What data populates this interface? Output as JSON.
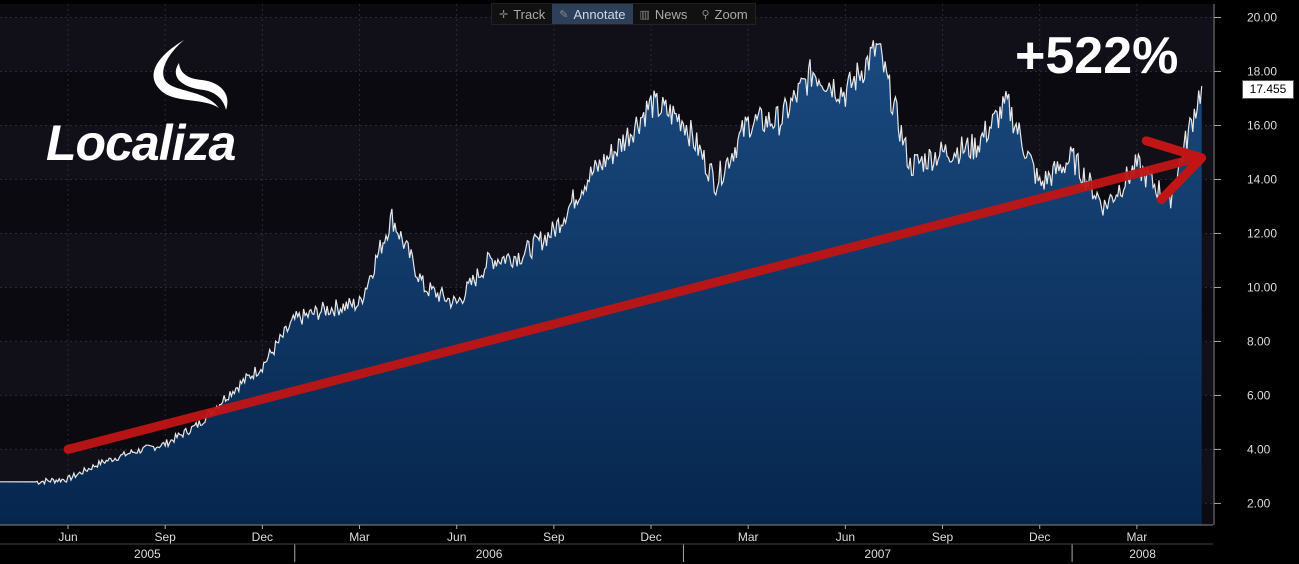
{
  "toolbar": {
    "track_label": "Track",
    "annotate_label": "Annotate",
    "news_label": "News",
    "zoom_label": "Zoom"
  },
  "logo": {
    "text": "Localiza",
    "icon": "swoosh-icon"
  },
  "annotation": {
    "percent_change": "+522%"
  },
  "last_price_tag": "17.455",
  "colors": {
    "background": "#0b0b12",
    "area_fill": "#0b3566",
    "line": "#e8e8e8",
    "arrow": "#c01515"
  },
  "chart_data": {
    "type": "area",
    "x": [
      "2005-05",
      "2005-06",
      "2005-07",
      "2005-08",
      "2005-09",
      "2005-10",
      "2005-11",
      "2005-12",
      "2006-01",
      "2006-02",
      "2006-03",
      "2006-04",
      "2006-05",
      "2006-06",
      "2006-07",
      "2006-08",
      "2006-09",
      "2006-10",
      "2006-11",
      "2006-12",
      "2007-01",
      "2007-02",
      "2007-03",
      "2007-04",
      "2007-05",
      "2007-06",
      "2007-07",
      "2007-08",
      "2007-09",
      "2007-10",
      "2007-11",
      "2007-12",
      "2008-01",
      "2008-02",
      "2008-03",
      "2008-04",
      "2008-05"
    ],
    "values": [
      2.8,
      2.9,
      3.5,
      3.9,
      4.2,
      4.9,
      6.1,
      7.1,
      8.8,
      9.2,
      9.4,
      12.6,
      10.0,
      9.4,
      11.0,
      11.2,
      12.1,
      14.0,
      15.2,
      16.8,
      16.2,
      13.9,
      16.1,
      16.2,
      18.0,
      17.2,
      18.9,
      14.5,
      15.0,
      15.2,
      16.8,
      13.8,
      14.8,
      13.0,
      14.5,
      13.2,
      17.46
    ],
    "ylim": [
      1.2,
      20.5
    ],
    "y_ticks": [
      "2.00",
      "4.00",
      "6.00",
      "8.00",
      "10.00",
      "12.00",
      "14.00",
      "16.00",
      "18.00",
      "20.00"
    ],
    "x_ticks": [
      "Jun",
      "Sep",
      "Dec",
      "Mar",
      "Jun",
      "Sep",
      "Dec",
      "Mar",
      "Jun",
      "Sep",
      "Dec",
      "Mar"
    ],
    "year_labels": [
      "2005",
      "2006",
      "2007",
      "2008"
    ],
    "grid": true,
    "trend_arrow": {
      "from": [
        "2005-06",
        4.0
      ],
      "to": [
        "2008-05",
        14.8
      ]
    }
  }
}
